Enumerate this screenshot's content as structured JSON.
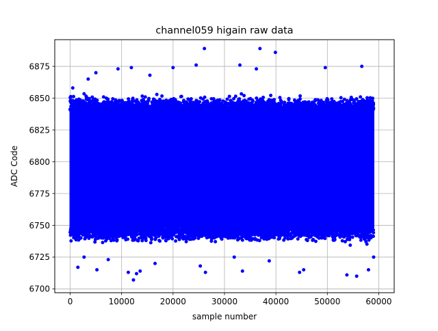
{
  "chart_data": {
    "type": "scatter",
    "title": "channel059 higain raw data",
    "xlabel": "sample number",
    "ylabel": "ADC Code",
    "xlim": [
      -3000,
      63000
    ],
    "ylim": [
      6697,
      6896
    ],
    "x_ticks": [
      0,
      10000,
      20000,
      30000,
      40000,
      50000,
      60000
    ],
    "y_ticks": [
      6700,
      6725,
      6750,
      6775,
      6800,
      6825,
      6850,
      6875
    ],
    "grid": true,
    "marker_color": "#0000ff",
    "series": [
      {
        "x_range": [
          0,
          59000
        ],
        "dense_band": [
          6748,
          6840
        ],
        "median": 6795,
        "outliers": [
          {
            "x": 500,
            "y": 6858
          },
          {
            "x": 1500,
            "y": 6717
          },
          {
            "x": 2700,
            "y": 6725
          },
          {
            "x": 3500,
            "y": 6865
          },
          {
            "x": 5000,
            "y": 6870
          },
          {
            "x": 5200,
            "y": 6715
          },
          {
            "x": 7400,
            "y": 6723
          },
          {
            "x": 9300,
            "y": 6873
          },
          {
            "x": 11300,
            "y": 6713
          },
          {
            "x": 11900,
            "y": 6874
          },
          {
            "x": 12300,
            "y": 6707
          },
          {
            "x": 12900,
            "y": 6712
          },
          {
            "x": 13600,
            "y": 6714
          },
          {
            "x": 15500,
            "y": 6868
          },
          {
            "x": 16500,
            "y": 6720
          },
          {
            "x": 20000,
            "y": 6874
          },
          {
            "x": 24500,
            "y": 6876
          },
          {
            "x": 25300,
            "y": 6718
          },
          {
            "x": 26100,
            "y": 6889
          },
          {
            "x": 26300,
            "y": 6713
          },
          {
            "x": 31900,
            "y": 6725
          },
          {
            "x": 33000,
            "y": 6876
          },
          {
            "x": 33500,
            "y": 6714
          },
          {
            "x": 36200,
            "y": 6873
          },
          {
            "x": 36900,
            "y": 6889
          },
          {
            "x": 38700,
            "y": 6722
          },
          {
            "x": 39900,
            "y": 6886
          },
          {
            "x": 44600,
            "y": 6713
          },
          {
            "x": 45400,
            "y": 6715
          },
          {
            "x": 49600,
            "y": 6874
          },
          {
            "x": 53800,
            "y": 6711
          },
          {
            "x": 55700,
            "y": 6710
          },
          {
            "x": 56700,
            "y": 6875
          },
          {
            "x": 58000,
            "y": 6715
          },
          {
            "x": 59000,
            "y": 6725
          }
        ]
      }
    ]
  }
}
